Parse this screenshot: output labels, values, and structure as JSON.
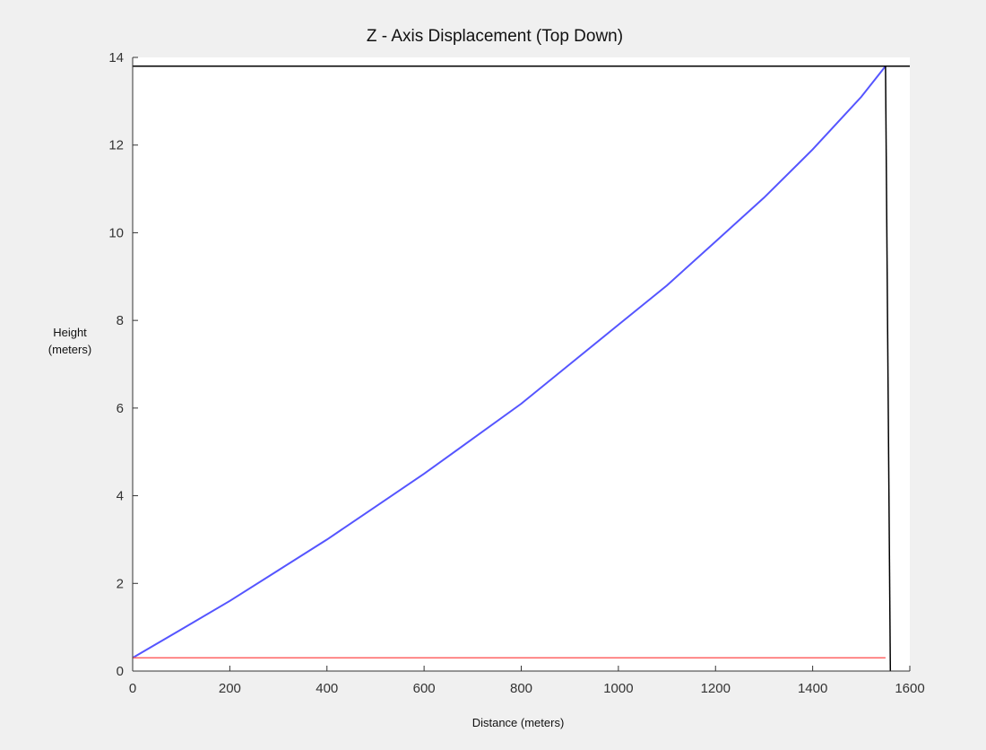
{
  "chart_data": {
    "type": "line",
    "title": "Z - Axis Displacement (Top Down)",
    "xlabel": "Distance (meters)",
    "ylabel": [
      "Height",
      "(meters)"
    ],
    "xlim": [
      0,
      1600
    ],
    "ylim": [
      0,
      14
    ],
    "xticks": [
      0,
      200,
      400,
      600,
      800,
      1000,
      1200,
      1400,
      1600
    ],
    "yticks": [
      0,
      2,
      4,
      6,
      8,
      10,
      12,
      14
    ],
    "grid": false,
    "series": [
      {
        "color": "#5555ff",
        "x": [
          0,
          100,
          200,
          300,
          400,
          500,
          600,
          700,
          800,
          900,
          1000,
          1100,
          1200,
          1300,
          1400,
          1500,
          1550
        ],
        "y": [
          0.3,
          0.95,
          1.6,
          2.3,
          3.0,
          3.75,
          4.5,
          5.3,
          6.1,
          7.0,
          7.9,
          8.8,
          9.8,
          10.8,
          11.9,
          13.1,
          13.8
        ]
      },
      {
        "color": "#ff6666",
        "x": [
          0,
          1550
        ],
        "y": [
          0.3,
          0.3
        ]
      },
      {
        "color": "#000000",
        "x": [
          0,
          1600
        ],
        "y": [
          13.8,
          13.8
        ]
      },
      {
        "color": "#000000",
        "x": [
          1550,
          1560
        ],
        "y": [
          13.8,
          0
        ]
      }
    ]
  }
}
